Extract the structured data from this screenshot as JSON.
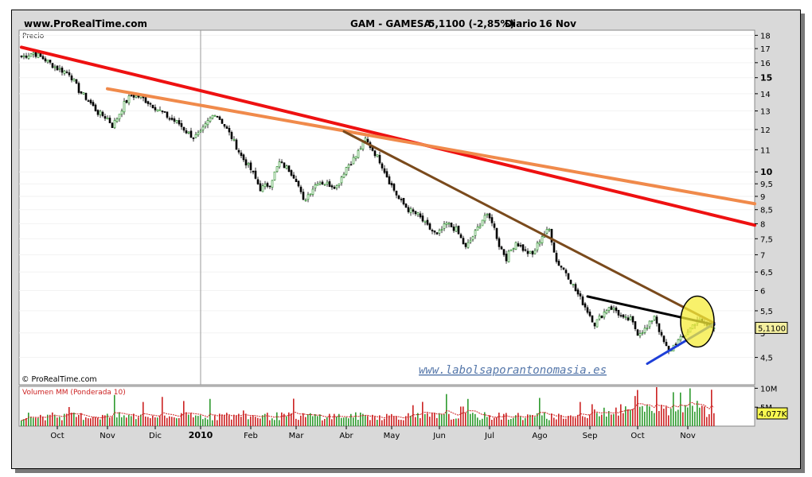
{
  "header": {
    "site": "www.ProRealTime.com",
    "instrument": "GAM - GAMESA",
    "price_change": "5,1100 (-2,85%)",
    "period": "Diario",
    "date": "16 Nov"
  },
  "chart_data": {
    "type": "candlestick",
    "price_panel": {
      "label": "Precio",
      "y_ticks": [
        "18",
        "17",
        "16",
        "15",
        "14",
        "13",
        "12",
        "11",
        "10",
        "9,5",
        "9",
        "8,5",
        "8",
        "7,5",
        "7",
        "6,5",
        "6",
        "5,5",
        "5",
        "4,5"
      ],
      "y_bold_ticks": [
        "15",
        "10"
      ],
      "scale": "log",
      "ylim": [
        4.0,
        18.4
      ],
      "last_price_label": "5,1100",
      "last_value": 5.11,
      "copyright": "© ProRealTime.com",
      "watermark": "www.labolsaporantonomasia.es",
      "x_range_index": [
        0,
        290
      ],
      "year_separator_index": 75,
      "price_anchors": [
        [
          0,
          16.4
        ],
        [
          5,
          16.7
        ],
        [
          10,
          16.2
        ],
        [
          15,
          15.6
        ],
        [
          20,
          15.3
        ],
        [
          24,
          14.2
        ],
        [
          28,
          13.6
        ],
        [
          32,
          12.9
        ],
        [
          36,
          12.6
        ],
        [
          38,
          12.2
        ],
        [
          40,
          12.6
        ],
        [
          43,
          13.4
        ],
        [
          46,
          13.9
        ],
        [
          50,
          13.8
        ],
        [
          54,
          13.4
        ],
        [
          58,
          13.0
        ],
        [
          62,
          12.6
        ],
        [
          66,
          12.3
        ],
        [
          69,
          11.9
        ],
        [
          72,
          11.6
        ],
        [
          75,
          11.8
        ],
        [
          78,
          12.4
        ],
        [
          81,
          12.9
        ],
        [
          84,
          12.4
        ],
        [
          88,
          11.6
        ],
        [
          92,
          10.7
        ],
        [
          96,
          10.1
        ],
        [
          100,
          9.3
        ],
        [
          104,
          9.5
        ],
        [
          108,
          10.4
        ],
        [
          112,
          10.1
        ],
        [
          115,
          9.7
        ],
        [
          118,
          8.8
        ],
        [
          121,
          9.2
        ],
        [
          124,
          9.6
        ],
        [
          128,
          9.5
        ],
        [
          132,
          9.4
        ],
        [
          136,
          10.2
        ],
        [
          140,
          10.7
        ],
        [
          144,
          11.5
        ],
        [
          147,
          11.0
        ],
        [
          150,
          10.5
        ],
        [
          154,
          9.6
        ],
        [
          158,
          8.9
        ],
        [
          162,
          8.5
        ],
        [
          166,
          8.3
        ],
        [
          170,
          7.9
        ],
        [
          174,
          7.6
        ],
        [
          178,
          8.0
        ],
        [
          182,
          7.8
        ],
        [
          186,
          7.2
        ],
        [
          190,
          7.7
        ],
        [
          194,
          8.3
        ],
        [
          197,
          8.1
        ],
        [
          200,
          7.3
        ],
        [
          203,
          6.9
        ],
        [
          207,
          7.4
        ],
        [
          211,
          7.1
        ],
        [
          214,
          7.0
        ],
        [
          218,
          7.6
        ],
        [
          221,
          7.8
        ],
        [
          224,
          6.8
        ],
        [
          228,
          6.5
        ],
        [
          232,
          6.0
        ],
        [
          236,
          5.6
        ],
        [
          240,
          5.2
        ],
        [
          243,
          5.4
        ],
        [
          246,
          5.6
        ],
        [
          249,
          5.5
        ],
        [
          252,
          5.3
        ],
        [
          255,
          5.3
        ],
        [
          258,
          5.0
        ],
        [
          262,
          5.1
        ],
        [
          265,
          5.4
        ],
        [
          268,
          4.9
        ],
        [
          271,
          4.6
        ],
        [
          274,
          4.8
        ],
        [
          277,
          4.9
        ],
        [
          280,
          5.1
        ],
        [
          283,
          5.3
        ],
        [
          286,
          5.2
        ],
        [
          290,
          5.11
        ]
      ],
      "trendlines": [
        {
          "color": "#ee1111",
          "from": [
            0,
            17.1
          ],
          "to": [
            344,
            7.25
          ],
          "width": 4
        },
        {
          "color": "#f08a4b",
          "from": [
            36,
            14.3
          ],
          "to": [
            344,
            8.15
          ],
          "width": 4
        },
        {
          "color": "#7a4a1c",
          "from": [
            135,
            11.9
          ],
          "to": [
            290,
            5.22
          ],
          "width": 3
        },
        {
          "color": "#000000",
          "from": [
            237,
            5.85
          ],
          "to": [
            290,
            5.18
          ],
          "width": 3
        },
        {
          "color": "#1e3fd8",
          "from": [
            262,
            4.38
          ],
          "to": [
            290,
            5.2
          ],
          "width": 3
        }
      ],
      "highlight_circle": {
        "x_index": 283,
        "y": 5.25
      }
    },
    "volume_panel": {
      "label": "Volumen MM (Ponderada 10)",
      "y_ticks": [
        "10M",
        "5M"
      ],
      "last_value_label": "4.077K",
      "ylim": [
        0,
        10500000
      ]
    },
    "x_axis": {
      "labels": [
        {
          "text": "Oct",
          "index": 15,
          "bold": false
        },
        {
          "text": "Nov",
          "index": 36,
          "bold": false
        },
        {
          "text": "Dic",
          "index": 56,
          "bold": false
        },
        {
          "text": "2010",
          "index": 75,
          "bold": true
        },
        {
          "text": "Feb",
          "index": 96,
          "bold": false
        },
        {
          "text": "Mar",
          "index": 115,
          "bold": false
        },
        {
          "text": "Abr",
          "index": 136,
          "bold": false
        },
        {
          "text": "May",
          "index": 155,
          "bold": false
        },
        {
          "text": "Jun",
          "index": 175,
          "bold": false
        },
        {
          "text": "Jul",
          "index": 196,
          "bold": false
        },
        {
          "text": "Ago",
          "index": 217,
          "bold": false
        },
        {
          "text": "Sep",
          "index": 238,
          "bold": false
        },
        {
          "text": "Oct",
          "index": 258,
          "bold": false
        },
        {
          "text": "Nov",
          "index": 279,
          "bold": false
        }
      ]
    },
    "colors": {
      "frame_bg": "#d9d9d9",
      "panel_bg": "#ffffff",
      "candle_up": "#1a8a1a",
      "candle_down": "#000000",
      "volume_up": "#2e9a2e",
      "volume_down": "#cc2222",
      "volume_ma": "#cc2222",
      "highlight_fill": "#f5ec3a",
      "last_price_box": "#f5f0a0",
      "volume_box": "#fafa50",
      "watermark": "#5577aa"
    }
  }
}
